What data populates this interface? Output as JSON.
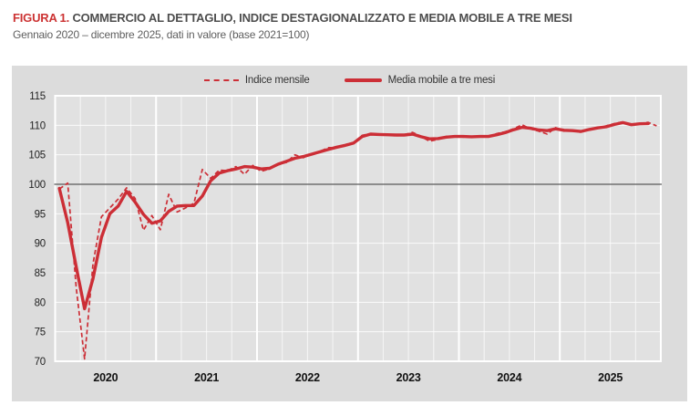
{
  "figure": {
    "label": "FIGURA 1.",
    "title": "COMMERCIO AL DETTAGLIO, INDICE DESTAGIONALIZZATO E MEDIA MOBILE A TRE MESI",
    "subtitle": "Gennaio 2020 – dicembre 2025, dati in valore (base 2021=100)"
  },
  "legend": {
    "monthly_label": "Indice mensile",
    "ma3_label": "Media mobile a tre mesi"
  },
  "colors": {
    "series_red": "#cc2e36",
    "figure_label_red": "#cc3333",
    "title_text": "#4d4d4d",
    "subtitle_text": "#5e5e5e",
    "panel_bg": "#dcdcdc",
    "plot_bg": "#e1e1e1",
    "grid_white": "#ffffff",
    "baseline_gray": "#595959",
    "y_tick_text": "#222222",
    "x_tick_text": "#111111"
  },
  "chart_data": {
    "type": "line",
    "title": "Commercio al dettaglio, indice destagionalizzato e media mobile a tre mesi",
    "period_start": "Gennaio 2020",
    "period_end": "dicembre 2025",
    "base_note": "dati in valore (base 2021=100)",
    "x_year_labels": [
      "2020",
      "2021",
      "2022",
      "2023",
      "2024",
      "2025"
    ],
    "months_per_year": 12,
    "y_ticks": [
      115,
      110,
      105,
      100,
      95,
      90,
      85,
      80,
      75,
      70
    ],
    "ylim": [
      70,
      115
    ],
    "baseline_value": 100,
    "grid": "on",
    "legend_position": "top",
    "series": [
      {
        "name": "Indice mensile",
        "style": "dashed",
        "values": [
          99.2,
          100.2,
          82.5,
          70.4,
          86.5,
          94.5,
          96.0,
          97.5,
          99.4,
          97.6,
          92.2,
          94.7,
          92.3,
          98.3,
          95.3,
          96.0,
          96.8,
          102.5,
          101.0,
          102.4,
          102.3,
          103.0,
          101.7,
          103.2,
          102.2,
          102.6,
          103.4,
          103.7,
          105.0,
          104.5,
          105.2,
          105.6,
          106.2,
          106.2,
          106.7,
          107.1,
          108.3,
          108.6,
          108.4,
          108.4,
          108.2,
          108.4,
          108.8,
          108.1,
          107.3,
          107.6,
          108.1,
          108.2,
          108.0,
          108.1,
          108.1,
          108.0,
          108.6,
          108.9,
          109.4,
          110.1,
          109.4,
          109.0,
          108.5,
          109.6,
          109.0,
          109.2,
          108.8,
          109.4,
          109.6,
          109.9,
          110.3,
          110.6,
          110.0,
          110.3,
          110.5,
          109.9
        ]
      },
      {
        "name": "Media mobile a tre mesi",
        "style": "solid",
        "values": [
          99.3,
          93.5,
          86.0,
          78.9,
          84.0,
          91.0,
          95.0,
          96.3,
          98.8,
          97.0,
          94.9,
          93.4,
          93.8,
          95.4,
          96.3,
          96.4,
          96.4,
          98.0,
          100.6,
          101.9,
          102.3,
          102.6,
          103.0,
          102.9,
          102.6,
          102.7,
          103.4,
          103.9,
          104.4,
          104.7,
          105.1,
          105.5,
          105.9,
          106.3,
          106.6,
          107.0,
          108.1,
          108.5,
          108.45,
          108.4,
          108.35,
          108.35,
          108.5,
          108.05,
          107.7,
          107.75,
          108.0,
          108.1,
          108.1,
          108.05,
          108.1,
          108.1,
          108.4,
          108.75,
          109.25,
          109.65,
          109.5,
          109.2,
          109.1,
          109.4,
          109.15,
          109.1,
          108.95,
          109.3,
          109.55,
          109.75,
          110.15,
          110.45,
          110.1,
          110.25,
          110.3,
          null
        ]
      }
    ]
  }
}
